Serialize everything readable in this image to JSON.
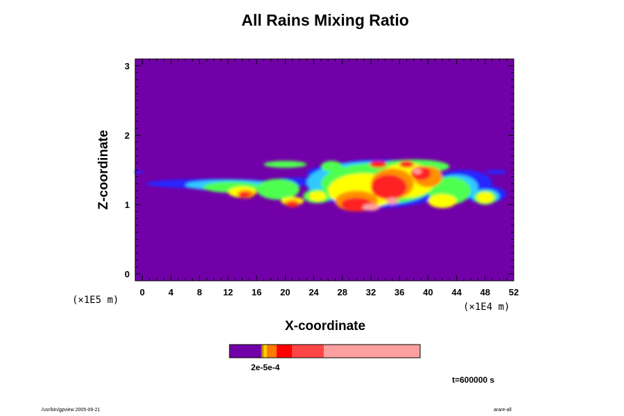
{
  "chart_data": {
    "type": "heatmap",
    "title": "All Rains Mixing Ratio",
    "xlabel": "X-coordinate",
    "ylabel": "Z-coordinate",
    "x_scale_note": "(×1E4 m)",
    "y_scale_note": "(×1E5 m)",
    "xlim": [
      -1,
      52
    ],
    "ylim": [
      -0.1,
      3.1
    ],
    "x_ticks": [
      "0",
      "4",
      "8",
      "12",
      "16",
      "20",
      "24",
      "28",
      "32",
      "36",
      "40",
      "44",
      "48",
      "52"
    ],
    "y_ticks": [
      "0",
      "1",
      "2",
      "3"
    ],
    "background_color": "#7200a8",
    "colorbar": {
      "colors": [
        "#7200a8",
        "#c08000",
        "#ffcc00",
        "#ff7a00",
        "#ff0000",
        "#ff4646",
        "#ffa0a0"
      ],
      "label_text": "2e-5e-4"
    },
    "time_label": "t=600000 s"
  },
  "footer": {
    "left": "/usr/bin/gpview 2005-09-21",
    "right": "arare-all"
  }
}
